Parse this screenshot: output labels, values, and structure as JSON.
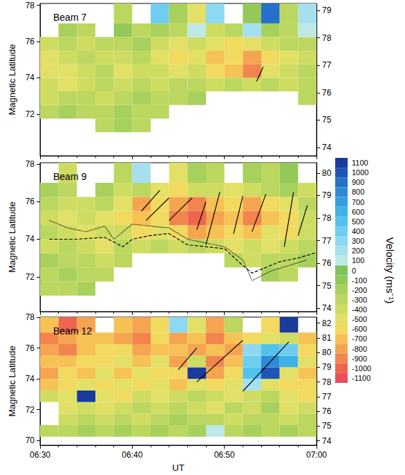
{
  "chart_data": {
    "type": "heatmap",
    "x_label": "UT",
    "xlim": [
      390,
      420
    ],
    "xticks": [
      {
        "value": 390,
        "label": "06:30"
      },
      {
        "value": 400,
        "label": "06:40"
      },
      {
        "value": 410,
        "label": "06:50"
      },
      {
        "value": 420,
        "label": "07:00"
      }
    ],
    "colorbar": {
      "title": "Velocity (ms⁻¹)",
      "levels": [
        1100,
        1000,
        900,
        800,
        700,
        600,
        500,
        400,
        300,
        200,
        100,
        0,
        -100,
        -200,
        -300,
        -400,
        -500,
        -600,
        -700,
        -800,
        -900,
        -1000,
        -1100
      ],
      "colors": [
        "#1a3a9c",
        "#1f55b5",
        "#2570c9",
        "#2e8bd8",
        "#35a0e0",
        "#3fb3e6",
        "#52c2ec",
        "#6fcdf0",
        "#8dd8f2",
        "#a6e0ef",
        "#bde8e6",
        "#7fc35f",
        "#94c95a",
        "#a8d05c",
        "#bcd75f",
        "#cfdc62",
        "#e2e066",
        "#f2d95f",
        "#f7c255",
        "#f5a550",
        "#f2844d",
        "#ee654f",
        "#e94f5a"
      ]
    },
    "panels": [
      {
        "title": "Beam 7",
        "ylabel": "Magnetic Latitude",
        "ylim": [
          69.7,
          78.1
        ],
        "yticks": [
          72,
          74,
          76,
          78
        ],
        "y2lim": [
          73.7,
          79.25
        ],
        "y2ticks": [
          74,
          75,
          76,
          77,
          78,
          79
        ],
        "x": [
          390,
          392,
          394,
          396,
          398,
          400,
          402,
          404,
          406,
          408,
          410,
          412,
          414,
          416,
          418
        ],
        "y": [
          71.0,
          71.75,
          72.5,
          73.25,
          74.0,
          74.75,
          75.5,
          76.25,
          77.0
        ],
        "cells": [
          [
            null,
            null,
            null,
            -300,
            -200,
            -300,
            null,
            null,
            null,
            null,
            null,
            null,
            null,
            null,
            null
          ],
          [
            -300,
            -200,
            -300,
            -300,
            -200,
            -300,
            -300,
            null,
            null,
            null,
            null,
            null,
            null,
            null,
            null
          ],
          [
            -400,
            -300,
            -300,
            -400,
            -300,
            -200,
            -300,
            -300,
            -200,
            null,
            null,
            null,
            null,
            null,
            -300
          ],
          [
            -400,
            -500,
            -400,
            -300,
            -400,
            -300,
            -400,
            -300,
            -300,
            -400,
            -300,
            -400,
            -300,
            -400,
            -300
          ],
          [
            -500,
            -500,
            -400,
            -300,
            -500,
            -400,
            -400,
            -500,
            -400,
            -600,
            -700,
            -900,
            -500,
            -400,
            -300
          ],
          [
            -500,
            -400,
            -300,
            -400,
            -400,
            -300,
            -500,
            -600,
            -500,
            -700,
            -600,
            -800,
            -600,
            -500,
            -400
          ],
          [
            -400,
            -300,
            -400,
            -300,
            -300,
            -200,
            -400,
            -500,
            -400,
            -500,
            -600,
            -500,
            -400,
            -300,
            -300
          ],
          [
            null,
            -200,
            -300,
            null,
            -100,
            -300,
            -200,
            -300,
            100,
            -400,
            -300,
            200,
            -200,
            -300,
            100
          ],
          [
            null,
            null,
            null,
            null,
            -300,
            null,
            400,
            -200,
            -500,
            300,
            null,
            -100,
            900,
            -300,
            200
          ]
        ],
        "lines": [
          {
            "x": [
              413.5,
              414.2
            ],
            "y": [
              73.8,
              74.6
            ]
          }
        ],
        "curves": []
      },
      {
        "title": "Beam 9",
        "ylabel": "Magnetic Latitude",
        "ylim": [
          70.15,
          78.07
        ],
        "yticks": [
          72,
          74,
          76,
          78
        ],
        "y2lim": [
          73.85,
          80.46
        ],
        "y2ticks": [
          74,
          75,
          76,
          77,
          78,
          79,
          80
        ],
        "x": [
          390,
          392,
          394,
          396,
          398,
          400,
          402,
          404,
          406,
          408,
          410,
          412,
          414,
          416,
          418
        ],
        "y": [
          71.0,
          71.75,
          72.5,
          73.25,
          74.0,
          74.75,
          75.5,
          76.25,
          77.0
        ],
        "cells": [
          [
            -300,
            -300,
            -200,
            null,
            null,
            null,
            null,
            null,
            null,
            null,
            null,
            null,
            null,
            null,
            null
          ],
          [
            -300,
            -200,
            -300,
            -300,
            null,
            null,
            null,
            null,
            null,
            null,
            null,
            null,
            -200,
            -300,
            null
          ],
          [
            -200,
            -300,
            -300,
            -400,
            -300,
            null,
            null,
            null,
            null,
            null,
            -300,
            -400,
            -300,
            -300,
            -200
          ],
          [
            -400,
            -300,
            -400,
            -500,
            -300,
            -400,
            -300,
            -400,
            -300,
            -400,
            -500,
            -400,
            -500,
            -400,
            -300
          ],
          [
            -300,
            -400,
            -500,
            -400,
            -400,
            -600,
            -500,
            -600,
            -800,
            -700,
            -600,
            -700,
            -500,
            -600,
            -400
          ],
          [
            -400,
            -500,
            -400,
            -500,
            -600,
            -700,
            -600,
            -900,
            -1000,
            -800,
            -700,
            -900,
            -700,
            -600,
            -400
          ],
          [
            -300,
            -400,
            -400,
            -300,
            -500,
            -800,
            -600,
            -800,
            -900,
            -700,
            -600,
            -800,
            -600,
            -500,
            -300
          ],
          [
            -200,
            -300,
            null,
            -200,
            -400,
            -300,
            -500,
            -600,
            -400,
            -400,
            -500,
            -400,
            -300,
            -200,
            -400
          ],
          [
            null,
            -400,
            null,
            null,
            -300,
            200,
            null,
            -500,
            -200,
            -300,
            null,
            -200,
            -300,
            -100,
            null
          ]
        ],
        "lines": [
          {
            "x": [
              401,
              403
            ],
            "y": [
              75.5,
              76.6
            ]
          },
          {
            "x": [
              401.5,
              404
            ],
            "y": [
              75.0,
              76.2
            ]
          },
          {
            "x": [
              404,
              406.5
            ],
            "y": [
              75.0,
              76.2
            ]
          },
          {
            "x": [
              407,
              408
            ],
            "y": [
              74.5,
              76.0
            ]
          },
          {
            "x": [
              408,
              409.5
            ],
            "y": [
              73.7,
              76.5
            ]
          },
          {
            "x": [
              411,
              412
            ],
            "y": [
              74.3,
              76.3
            ]
          },
          {
            "x": [
              413,
              414.5
            ],
            "y": [
              74.4,
              76.4
            ]
          },
          {
            "x": [
              416.5,
              417.5
            ],
            "y": [
              73.6,
              76.5
            ]
          },
          {
            "x": [
              418,
              419
            ],
            "y": [
              74.2,
              75.8
            ]
          }
        ],
        "curves": [
          {
            "line_style": "dashed",
            "x": [
              391,
              394,
              397,
              399,
              400,
              402,
              404,
              406,
              408,
              410,
              412,
              413,
              414,
              416,
              418,
              420
            ],
            "y": [
              74.0,
              74.0,
              74.1,
              73.6,
              74.0,
              74.2,
              74.3,
              73.7,
              73.6,
              73.5,
              72.6,
              72.2,
              72.4,
              72.8,
              73.0,
              73.3
            ]
          },
          {
            "line_style": "dotted",
            "x": [
              391,
              393,
              395,
              397,
              398,
              400,
              402,
              404,
              406,
              408,
              410,
              412,
              413,
              415,
              417,
              419
            ],
            "y": [
              75.0,
              74.6,
              74.4,
              74.7,
              74.0,
              74.8,
              74.7,
              74.6,
              74.0,
              73.8,
              73.6,
              72.9,
              71.8,
              72.3,
              72.6,
              72.9
            ]
          }
        ]
      },
      {
        "title": "Beam 12",
        "ylabel": "Magnetic Latitude",
        "ylim": [
          69.7,
          78.0
        ],
        "yticks": [
          70,
          72,
          74,
          76,
          78
        ],
        "y2lim": [
          73.7,
          82.4
        ],
        "y2ticks": [
          74,
          75,
          76,
          77,
          78,
          79,
          80,
          81,
          82
        ],
        "x": [
          390,
          392,
          394,
          396,
          398,
          400,
          402,
          404,
          406,
          408,
          410,
          412,
          414,
          416,
          418
        ],
        "y": [
          70.25,
          71.0,
          71.75,
          72.5,
          73.25,
          74.0,
          74.75,
          75.5,
          76.25,
          77.0
        ],
        "cells": [
          [
            -300,
            -300,
            -200,
            -300,
            -200,
            -300,
            -200,
            -300,
            -200,
            100,
            -300,
            -200,
            -300,
            -200,
            -300
          ],
          [
            null,
            -400,
            -300,
            -400,
            -300,
            -400,
            -300,
            -200,
            -300,
            -300,
            -400,
            -300,
            -300,
            -400,
            -300
          ],
          [
            null,
            -500,
            -400,
            -500,
            -400,
            -300,
            -400,
            -300,
            -400,
            -500,
            -300,
            -400,
            -200,
            -500,
            -400
          ],
          [
            -400,
            -500,
            1100,
            -500,
            -600,
            -400,
            -500,
            -400,
            -300,
            -400,
            -500,
            -400,
            -300,
            -500,
            -600
          ],
          [
            -700,
            -600,
            -500,
            -600,
            -500,
            -600,
            -500,
            -700,
            -500,
            -600,
            -500,
            200,
            -500,
            -600,
            -600
          ],
          [
            -800,
            -600,
            -700,
            -500,
            -700,
            -500,
            -600,
            -600,
            1100,
            -800,
            -600,
            500,
            1000,
            -500,
            -700
          ],
          [
            -700,
            -700,
            -600,
            -600,
            -500,
            -700,
            -500,
            -800,
            -400,
            -900,
            -700,
            400,
            800,
            600,
            -500
          ],
          [
            -800,
            -900,
            -700,
            -600,
            -600,
            -800,
            -700,
            -700,
            -800,
            -700,
            -800,
            300,
            500,
            400,
            -600
          ],
          [
            -900,
            -800,
            -700,
            -700,
            -800,
            -900,
            -600,
            -800,
            -700,
            -900,
            -700,
            -600,
            -500,
            -400,
            -700
          ],
          [
            -700,
            -1000,
            -800,
            null,
            -700,
            -800,
            -600,
            300,
            -500,
            -800,
            -300,
            null,
            -600,
            1100,
            null
          ]
        ],
        "lines": [
          {
            "x": [
              405,
              407
            ],
            "y": [
              74.6,
              76.0
            ]
          },
          {
            "x": [
              407,
              412
            ],
            "y": [
              73.8,
              76.5
            ]
          },
          {
            "x": [
              412,
              417
            ],
            "y": [
              73.2,
              76.4
            ]
          }
        ],
        "curves": []
      }
    ]
  }
}
